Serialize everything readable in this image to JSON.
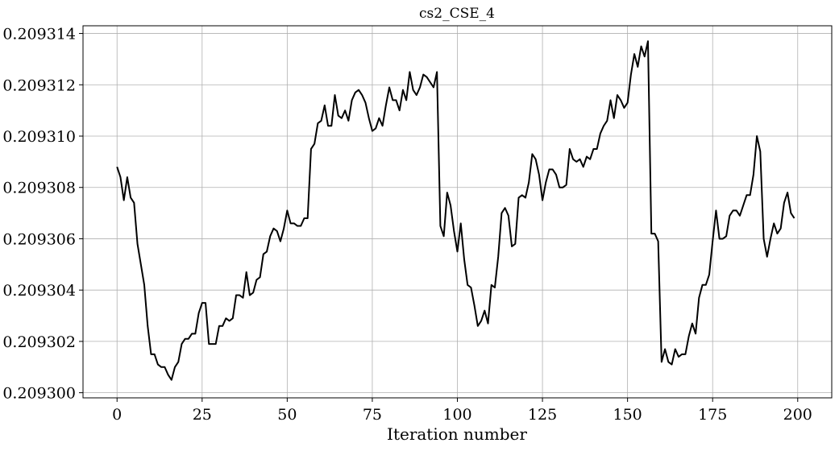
{
  "chart_data": {
    "type": "line",
    "title": "cs2_CSE_4",
    "xlabel": "Iteration number",
    "ylabel": "",
    "xlim": [
      -10,
      210
    ],
    "ylim": [
      0.2092998,
      0.2093143
    ],
    "xticks": [
      0,
      25,
      50,
      75,
      100,
      125,
      150,
      175,
      200
    ],
    "xtick_labels": [
      "0",
      "25",
      "50",
      "75",
      "100",
      "125",
      "150",
      "175",
      "200"
    ],
    "yticks": [
      0.2093,
      0.209302,
      0.209304,
      0.209306,
      0.209308,
      0.20931,
      0.209312,
      0.209314
    ],
    "ytick_labels": [
      "0.209300",
      "0.209302",
      "0.209304",
      "0.209306",
      "0.209308",
      "0.209310",
      "0.209312",
      "0.209314"
    ],
    "grid": true,
    "series": [
      {
        "color": "#000000",
        "x": [
          0,
          1,
          2,
          3,
          4,
          5,
          6,
          7,
          8,
          9,
          10,
          11,
          12,
          13,
          14,
          15,
          16,
          17,
          18,
          19,
          20,
          21,
          22,
          23,
          24,
          25,
          26,
          27,
          28,
          29,
          30,
          31,
          32,
          33,
          34,
          35,
          36,
          37,
          38,
          39,
          40,
          41,
          42,
          43,
          44,
          45,
          46,
          47,
          48,
          49,
          50,
          51,
          52,
          53,
          54,
          55,
          56,
          57,
          58,
          59,
          60,
          61,
          62,
          63,
          64,
          65,
          66,
          67,
          68,
          69,
          70,
          71,
          72,
          73,
          74,
          75,
          76,
          77,
          78,
          79,
          80,
          81,
          82,
          83,
          84,
          85,
          86,
          87,
          88,
          89,
          90,
          91,
          92,
          93,
          94,
          95,
          96,
          97,
          98,
          99,
          100,
          101,
          102,
          103,
          104,
          105,
          106,
          107,
          108,
          109,
          110,
          111,
          112,
          113,
          114,
          115,
          116,
          117,
          118,
          119,
          120,
          121,
          122,
          123,
          124,
          125,
          126,
          127,
          128,
          129,
          130,
          131,
          132,
          133,
          134,
          135,
          136,
          137,
          138,
          139,
          140,
          141,
          142,
          143,
          144,
          145,
          146,
          147,
          148,
          149,
          150,
          151,
          152,
          153,
          154,
          155,
          156,
          157,
          158,
          159,
          160,
          161,
          162,
          163,
          164,
          165,
          166,
          167,
          168,
          169,
          170,
          171,
          172,
          173,
          174,
          175,
          176,
          177,
          178,
          179,
          180,
          181,
          182,
          183,
          184,
          185,
          186,
          187,
          188,
          189,
          190,
          191,
          192,
          193,
          194,
          195,
          196,
          197,
          198,
          199
        ],
        "y": [
          0.2093088,
          0.2093084,
          0.2093075,
          0.2093084,
          0.2093076,
          0.2093074,
          0.2093058,
          0.209305,
          0.2093042,
          0.2093026,
          0.2093015,
          0.2093015,
          0.2093011,
          0.209301,
          0.209301,
          0.2093007,
          0.2093005,
          0.209301,
          0.2093012,
          0.2093019,
          0.2093021,
          0.2093021,
          0.2093023,
          0.2093023,
          0.2093031,
          0.2093035,
          0.2093035,
          0.2093019,
          0.2093019,
          0.2093019,
          0.2093026,
          0.2093026,
          0.2093029,
          0.2093028,
          0.2093029,
          0.2093038,
          0.2093038,
          0.2093037,
          0.2093047,
          0.2093038,
          0.2093039,
          0.2093044,
          0.2093045,
          0.2093054,
          0.2093055,
          0.2093061,
          0.2093064,
          0.2093063,
          0.2093059,
          0.2093064,
          0.2093071,
          0.2093066,
          0.2093066,
          0.2093065,
          0.2093065,
          0.2093068,
          0.2093068,
          0.2093095,
          0.2093097,
          0.2093105,
          0.2093106,
          0.2093112,
          0.2093104,
          0.2093104,
          0.2093116,
          0.2093108,
          0.2093107,
          0.209311,
          0.2093106,
          0.2093114,
          0.2093117,
          0.2093118,
          0.2093116,
          0.2093113,
          0.2093107,
          0.2093102,
          0.2093103,
          0.2093107,
          0.2093104,
          0.2093112,
          0.2093119,
          0.2093114,
          0.2093114,
          0.209311,
          0.2093118,
          0.2093114,
          0.2093125,
          0.2093118,
          0.2093116,
          0.2093119,
          0.2093124,
          0.2093123,
          0.2093121,
          0.2093119,
          0.2093125,
          0.2093065,
          0.2093061,
          0.2093078,
          0.2093073,
          0.2093063,
          0.2093055,
          0.2093066,
          0.2093052,
          0.2093042,
          0.2093041,
          0.2093034,
          0.2093026,
          0.2093028,
          0.2093032,
          0.2093027,
          0.2093042,
          0.2093041,
          0.2093053,
          0.209307,
          0.2093072,
          0.2093069,
          0.2093057,
          0.2093058,
          0.2093076,
          0.2093077,
          0.2093076,
          0.2093082,
          0.2093093,
          0.2093091,
          0.2093085,
          0.2093075,
          0.2093082,
          0.2093087,
          0.2093087,
          0.2093085,
          0.209308,
          0.209308,
          0.2093081,
          0.2093095,
          0.2093091,
          0.209309,
          0.2093091,
          0.2093088,
          0.2093092,
          0.2093091,
          0.2093095,
          0.2093095,
          0.2093101,
          0.2093104,
          0.2093106,
          0.2093114,
          0.2093107,
          0.2093116,
          0.2093114,
          0.2093111,
          0.2093113,
          0.2093124,
          0.2093132,
          0.2093127,
          0.2093135,
          0.2093131,
          0.2093137,
          0.2093062,
          0.2093062,
          0.2093059,
          0.2093012,
          0.2093017,
          0.2093012,
          0.2093011,
          0.2093017,
          0.2093014,
          0.2093015,
          0.2093015,
          0.2093022,
          0.2093027,
          0.2093023,
          0.2093037,
          0.2093042,
          0.2093042,
          0.2093046,
          0.2093059,
          0.2093071,
          0.209306,
          0.209306,
          0.2093061,
          0.2093069,
          0.2093071,
          0.2093071,
          0.2093069,
          0.2093073,
          0.2093077,
          0.2093077,
          0.2093085,
          0.20931,
          0.2093094,
          0.209306,
          0.2093053,
          0.209306,
          0.2093066,
          0.2093062,
          0.2093064,
          0.2093074,
          0.2093078,
          0.209307,
          0.2093068
        ]
      }
    ]
  }
}
